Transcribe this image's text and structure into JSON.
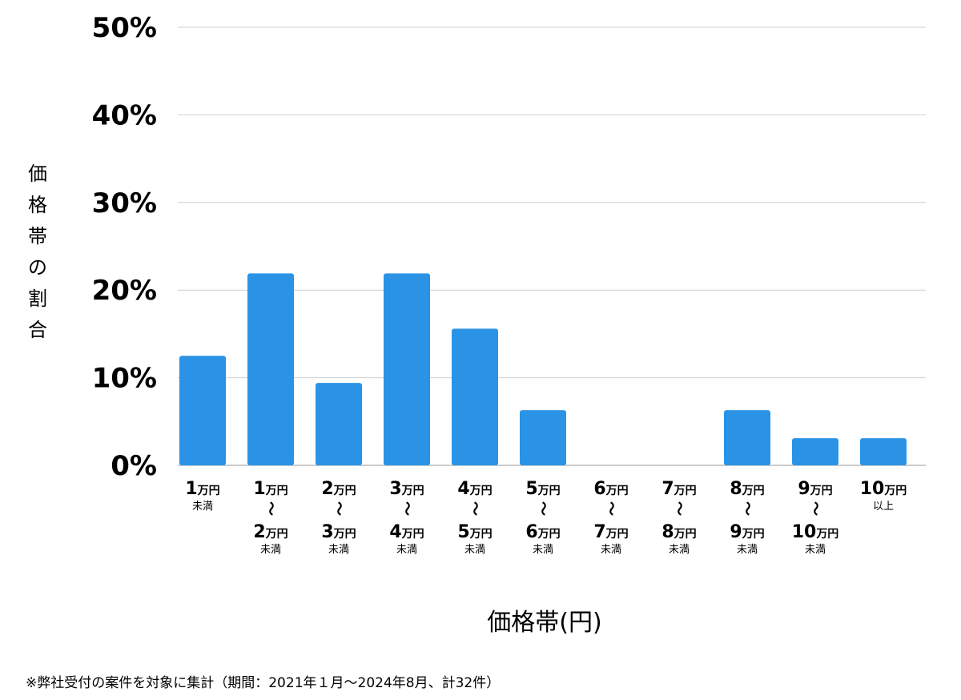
{
  "chart_data": {
    "type": "bar",
    "title": "",
    "xlabel": "価格帯(円)",
    "ylabel": "価格帯の割合",
    "ylim": [
      0,
      50
    ],
    "yticks": [
      "0%",
      "10%",
      "20%",
      "30%",
      "40%",
      "50%"
    ],
    "ytick_values": [
      0,
      10,
      20,
      30,
      40,
      50
    ],
    "bar_color": "#2a93e6",
    "grid": true,
    "categories": [
      {
        "lines": [
          [
            "1",
            "万円"
          ],
          [
            "未満"
          ]
        ]
      },
      {
        "lines": [
          [
            "1",
            "万円"
          ],
          [
            "〜"
          ],
          [
            "2",
            "万円"
          ],
          [
            "未満"
          ]
        ]
      },
      {
        "lines": [
          [
            "2",
            "万円"
          ],
          [
            "〜"
          ],
          [
            "3",
            "万円"
          ],
          [
            "未満"
          ]
        ]
      },
      {
        "lines": [
          [
            "3",
            "万円"
          ],
          [
            "〜"
          ],
          [
            "4",
            "万円"
          ],
          [
            "未満"
          ]
        ]
      },
      {
        "lines": [
          [
            "4",
            "万円"
          ],
          [
            "〜"
          ],
          [
            "5",
            "万円"
          ],
          [
            "未満"
          ]
        ]
      },
      {
        "lines": [
          [
            "5",
            "万円"
          ],
          [
            "〜"
          ],
          [
            "6",
            "万円"
          ],
          [
            "未満"
          ]
        ]
      },
      {
        "lines": [
          [
            "6",
            "万円"
          ],
          [
            "〜"
          ],
          [
            "7",
            "万円"
          ],
          [
            "未満"
          ]
        ]
      },
      {
        "lines": [
          [
            "7",
            "万円"
          ],
          [
            "〜"
          ],
          [
            "8",
            "万円"
          ],
          [
            "未満"
          ]
        ]
      },
      {
        "lines": [
          [
            "8",
            "万円"
          ],
          [
            "〜"
          ],
          [
            "9",
            "万円"
          ],
          [
            "未満"
          ]
        ]
      },
      {
        "lines": [
          [
            "9",
            "万円"
          ],
          [
            "〜"
          ],
          [
            "10",
            "万円"
          ],
          [
            "未満"
          ]
        ]
      },
      {
        "lines": [
          [
            "10",
            "万円"
          ],
          [
            "以上"
          ]
        ]
      }
    ],
    "values": [
      12.5,
      21.9,
      9.4,
      21.9,
      15.6,
      6.3,
      0,
      0,
      6.3,
      3.1,
      3.1
    ]
  },
  "ylabel_chars": [
    "価",
    "格",
    "帯",
    "の",
    "割",
    "合"
  ],
  "footnote": "※弊社受付の案件を対象に集計（期間：2021年１月〜2024年8月、計32件）"
}
